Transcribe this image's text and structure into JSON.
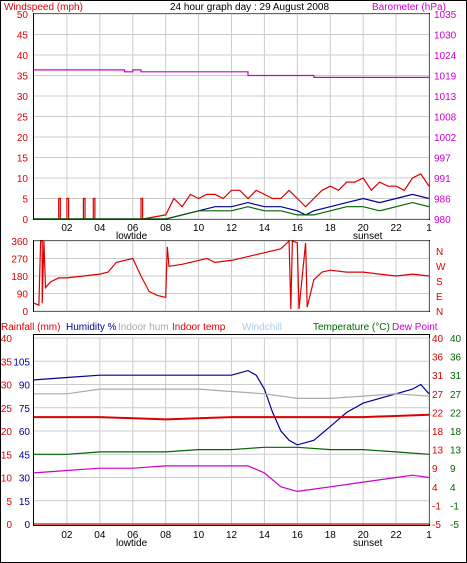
{
  "header": {
    "left_title": "Windspeed (mph)",
    "center_title": "24 hour graph day : 29 August 2008",
    "right_title": "Barometer (hPa)"
  },
  "bottom_header": {
    "rainfall": "Rainfall (mm)",
    "humidity": "Humidity %",
    "indoor_hum": "Indoor hum",
    "indoor_temp": "Indoor temp",
    "windchill": "Windchill",
    "temperature": "Temperature (°C)",
    "dewpoint": "Dew Point"
  },
  "colors": {
    "red": "#dd0000",
    "blue": "#000099",
    "green": "#006600",
    "magenta": "#cc00cc",
    "gray": "#aaaaaa",
    "windchill": "#aaccee"
  },
  "chart_data": [
    {
      "type": "line",
      "panel": "wind",
      "x_ticks": [
        "02",
        "04",
        "06",
        "08",
        "10",
        "12",
        "14",
        "16",
        "18",
        "20",
        "22",
        "1"
      ],
      "x_markers": [
        "lowtide",
        "sunset"
      ],
      "y_left": {
        "ticks": [
          0,
          5,
          10,
          15,
          20,
          25,
          30,
          35,
          40,
          45,
          50
        ],
        "ylim": [
          0,
          50
        ]
      },
      "y_right": {
        "ticks": [
          980,
          986,
          991,
          997,
          1002,
          1008,
          1013,
          1019,
          1024,
          1030,
          1035
        ],
        "ylim": [
          980,
          1035
        ]
      },
      "series": [
        {
          "name": "Barometer (hPa)",
          "color": "#cc00cc",
          "axis": "right",
          "x": [
            0,
            5.5,
            5.5,
            6.0,
            6.0,
            6.5,
            6.5,
            13.0,
            13.0,
            17.0,
            17.0,
            24
          ],
          "y": [
            1020,
            1020,
            1019.5,
            1019.5,
            1020,
            1020,
            1019.5,
            1019.5,
            1018.5,
            1018.5,
            1018,
            1018
          ]
        },
        {
          "name": "Wind gust",
          "color": "#dd0000",
          "axis": "left",
          "x": [
            0,
            1.5,
            1.5,
            1.6,
            1.6,
            2.0,
            2.0,
            2.1,
            2.1,
            3.0,
            3.0,
            3.1,
            3.1,
            3.6,
            3.6,
            3.7,
            3.7,
            6.5,
            6.5,
            6.6,
            6.6,
            8.0,
            8.5,
            9.0,
            9.5,
            10.0,
            10.5,
            11.0,
            11.5,
            12.0,
            12.5,
            13.0,
            13.5,
            14.0,
            14.5,
            15.0,
            15.5,
            16.0,
            16.5,
            17.0,
            17.5,
            18.0,
            18.5,
            19.0,
            19.5,
            20.0,
            20.5,
            21.0,
            21.5,
            22.0,
            22.5,
            23.0,
            23.5,
            24
          ],
          "y": [
            0,
            0,
            5,
            5,
            0,
            0,
            5,
            5,
            0,
            0,
            5,
            5,
            0,
            0,
            5,
            5,
            0,
            0,
            5,
            5,
            0,
            1,
            5,
            3,
            6,
            5,
            6,
            6,
            5,
            7,
            7,
            5,
            7,
            6,
            5,
            5,
            7,
            5,
            3,
            5,
            7,
            8,
            7,
            9,
            9,
            10,
            7,
            9,
            8,
            8,
            7,
            10,
            11,
            8
          ]
        },
        {
          "name": "Wind average",
          "color": "#000099",
          "axis": "left",
          "x": [
            0,
            8.0,
            9.0,
            10.0,
            11.0,
            12.0,
            13.0,
            14.0,
            15.0,
            16.0,
            16.5,
            17.0,
            18.0,
            19.0,
            20.0,
            21.0,
            22.0,
            23.0,
            24
          ],
          "y": [
            0,
            0,
            1,
            2,
            3,
            3,
            4,
            3,
            3,
            2,
            1,
            2,
            3,
            4,
            5,
            4,
            5,
            6,
            5
          ]
        },
        {
          "name": "Wind speed",
          "color": "#006600",
          "axis": "left",
          "x": [
            0,
            8.0,
            9.0,
            10.0,
            11.0,
            12.0,
            13.0,
            14.0,
            15.0,
            16.0,
            17.0,
            18.0,
            19.0,
            20.0,
            21.0,
            22.0,
            23.0,
            24
          ],
          "y": [
            0,
            0,
            1,
            2,
            2,
            2,
            3,
            2,
            2,
            1,
            1,
            2,
            3,
            3,
            2,
            3,
            4,
            3
          ]
        }
      ]
    },
    {
      "type": "line",
      "panel": "direction",
      "y_left": {
        "ticks": [
          0,
          90,
          180,
          270,
          360
        ],
        "ylim": [
          0,
          360
        ]
      },
      "y_right_labels": [
        "N",
        "W",
        "S",
        "E",
        "N"
      ],
      "series": [
        {
          "name": "Wind direction",
          "color": "#dd0000",
          "x": [
            0,
            0.3,
            0.4,
            0.5,
            0.5,
            0.6,
            0.7,
            1.0,
            1.5,
            2.0,
            3.0,
            4.0,
            4.5,
            5.0,
            6.0,
            6.5,
            7.0,
            7.5,
            8.0,
            8.1,
            8.2,
            9.0,
            10.0,
            10.5,
            11.0,
            12.0,
            13.0,
            14.0,
            15.0,
            15.5,
            15.6,
            15.7,
            16.0,
            16.1,
            16.5,
            16.6,
            17.0,
            17.5,
            18.0,
            19.0,
            20.0,
            21.0,
            22.0,
            23.0,
            24
          ],
          "y": [
            40,
            30,
            360,
            360,
            40,
            360,
            120,
            150,
            170,
            170,
            180,
            190,
            200,
            250,
            270,
            180,
            100,
            80,
            70,
            330,
            230,
            240,
            260,
            270,
            250,
            260,
            280,
            300,
            320,
            360,
            10,
            360,
            350,
            10,
            350,
            20,
            160,
            200,
            210,
            200,
            200,
            190,
            180,
            190,
            180
          ]
        }
      ]
    },
    {
      "type": "line",
      "panel": "temperature_humidity",
      "y_left": {
        "ticks": [
          0,
          5,
          10,
          15,
          20,
          25,
          30,
          35,
          40
        ],
        "ylim": [
          0,
          40
        ],
        "label": "Rainfall (mm)"
      },
      "y_left2": {
        "ticks": [
          0,
          15,
          30,
          45,
          60,
          75,
          90,
          105
        ],
        "label": "Humidity %"
      },
      "y_right": {
        "ticks": [
          40,
          36,
          31,
          27,
          22,
          18,
          13,
          9,
          4,
          -1,
          -5
        ],
        "label": "Temperature (°C)"
      },
      "y_right2": {
        "ticks": [
          40,
          36,
          31,
          27,
          22,
          18,
          13,
          9,
          4,
          -1,
          -5
        ]
      },
      "series": [
        {
          "name": "Rainfall",
          "color": "#dd0000",
          "x": [
            0,
            24
          ],
          "y": [
            0,
            0
          ]
        },
        {
          "name": "Humidity",
          "color": "#000099",
          "x": [
            0,
            2.0,
            4.0,
            6.0,
            8.0,
            10.0,
            12.0,
            13.0,
            13.5,
            14.0,
            14.5,
            15.0,
            15.5,
            16.0,
            17.0,
            18.0,
            19.0,
            20.0,
            21.0,
            22.0,
            23.0,
            23.5,
            24
          ],
          "y": [
            31,
            31.5,
            32,
            32,
            32,
            32,
            32,
            33,
            32,
            29,
            24,
            20,
            18,
            17,
            18,
            21,
            24,
            26,
            27,
            28,
            29,
            30,
            28
          ]
        },
        {
          "name": "Indoor hum",
          "color": "#aaaaaa",
          "x": [
            0,
            2.0,
            4.0,
            6.0,
            8.0,
            10.0,
            12.0,
            14.0,
            16.0,
            18.0,
            20.0,
            22.0,
            24
          ],
          "y": [
            28,
            28,
            29,
            29,
            29,
            29,
            28.5,
            28,
            27,
            27,
            27.5,
            28,
            27.5
          ]
        },
        {
          "name": "Indoor temp",
          "color": "#dd0000",
          "x": [
            0,
            4.0,
            8.0,
            12.0,
            16.0,
            20.0,
            24
          ],
          "y": [
            23,
            23,
            22.5,
            23,
            23,
            23,
            23.5
          ]
        },
        {
          "name": "Temperature",
          "color": "#006600",
          "x": [
            0,
            2.0,
            4.0,
            6.0,
            8.0,
            10.0,
            12.0,
            14.0,
            16.0,
            18.0,
            20.0,
            22.0,
            24
          ],
          "y": [
            15,
            15,
            15.5,
            15.5,
            15.5,
            16,
            16,
            16.5,
            16.5,
            16,
            16,
            15.5,
            15
          ]
        },
        {
          "name": "Dew Point",
          "color": "#cc00cc",
          "x": [
            0,
            2.0,
            4.0,
            6.0,
            8.0,
            10.0,
            12.0,
            13.0,
            14.0,
            15.0,
            16.0,
            17.0,
            18.0,
            19.0,
            20.0,
            22.0,
            23.0,
            24
          ],
          "y": [
            11,
            11.5,
            12,
            12,
            12.5,
            12.5,
            12.5,
            12.5,
            11,
            8,
            7,
            7.5,
            8,
            8.5,
            9,
            10,
            10.5,
            10
          ]
        }
      ]
    }
  ]
}
